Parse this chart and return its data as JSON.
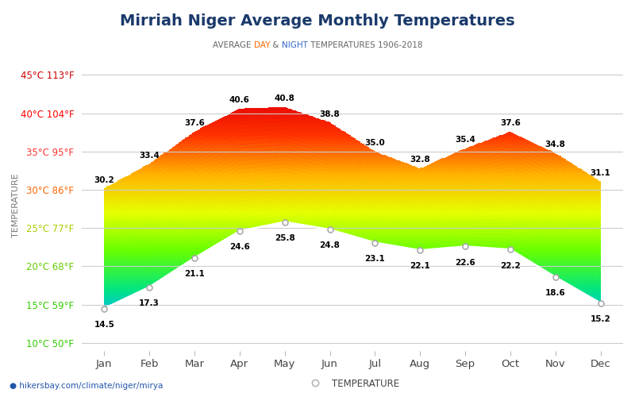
{
  "title": "Mirriah Niger Average Monthly Temperatures",
  "subtitle_parts": [
    "AVERAGE ",
    "DAY",
    " & ",
    "NIGHT",
    " TEMPERATURES 1906-2018"
  ],
  "subtitle_colors": [
    "#666666",
    "#ff6600",
    "#666666",
    "#3366cc",
    "#666666"
  ],
  "months": [
    "Jan",
    "Feb",
    "Mar",
    "Apr",
    "May",
    "Jun",
    "Jul",
    "Aug",
    "Sep",
    "Oct",
    "Nov",
    "Dec"
  ],
  "day_temps": [
    30.2,
    33.4,
    37.6,
    40.6,
    40.8,
    38.8,
    35.0,
    32.8,
    35.4,
    37.6,
    34.8,
    31.1
  ],
  "night_temps": [
    14.5,
    17.3,
    21.1,
    24.6,
    25.8,
    24.8,
    23.1,
    22.1,
    22.6,
    22.2,
    18.6,
    15.2
  ],
  "yticks_c": [
    10,
    15,
    20,
    25,
    30,
    35,
    40,
    45
  ],
  "yticks_f": [
    50,
    59,
    68,
    77,
    86,
    95,
    104,
    113
  ],
  "ytick_colors": [
    "#33cc00",
    "#33cc00",
    "#66cc00",
    "#aacc00",
    "#ff6600",
    "#ff3333",
    "#ff0000",
    "#cc0000"
  ],
  "ymin": 9,
  "ymax": 47,
  "title_color": "#1a3a6b",
  "title_fontsize": 14,
  "subtitle_fontsize": 7.5,
  "ylabel": "TEMPERATURE",
  "ylabel_color": "#777777",
  "watermark": "hikersbay.com/climate/niger/mirya",
  "legend_label": "TEMPERATURE",
  "background_color": "#ffffff",
  "grid_color": "#cccccc",
  "temp_colormap": [
    [
      10,
      [
        0.0,
        0.2,
        1.0
      ]
    ],
    [
      13,
      [
        0.0,
        0.7,
        1.0
      ]
    ],
    [
      17,
      [
        0.0,
        0.9,
        0.5
      ]
    ],
    [
      22,
      [
        0.4,
        1.0,
        0.0
      ]
    ],
    [
      27,
      [
        0.9,
        1.0,
        0.0
      ]
    ],
    [
      32,
      [
        1.0,
        0.7,
        0.0
      ]
    ],
    [
      37,
      [
        1.0,
        0.2,
        0.0
      ]
    ],
    [
      42,
      [
        0.9,
        0.0,
        0.0
      ]
    ]
  ]
}
